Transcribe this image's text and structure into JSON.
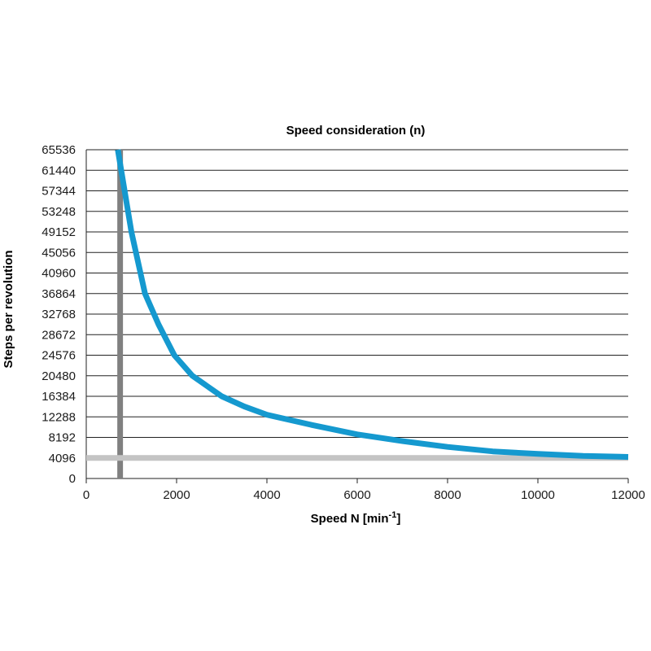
{
  "chart_data": {
    "type": "line",
    "title": "Speed consideration (n)",
    "xlabel": "Speed N [min",
    "xlabel_sup": "-1",
    "xlabel_end": "]",
    "ylabel": "Steps per revolution",
    "xlim": [
      0,
      12000
    ],
    "ylim": [
      0,
      65536
    ],
    "x_ticks": [
      0,
      2000,
      4000,
      6000,
      8000,
      10000,
      12000
    ],
    "y_ticks": [
      0,
      4096,
      8192,
      12288,
      16384,
      20480,
      24576,
      28672,
      32768,
      36864,
      40960,
      45056,
      49152,
      53248,
      57344,
      61440,
      65536
    ],
    "grid": "horizontal",
    "series": [
      {
        "color": "#1599cf",
        "points": [
          [
            700,
            65536
          ],
          [
            1000,
            49152
          ],
          [
            1300,
            36864
          ],
          [
            1600,
            30720
          ],
          [
            1950,
            24576
          ],
          [
            2350,
            20480
          ],
          [
            3000,
            16384
          ],
          [
            3500,
            14336
          ],
          [
            4000,
            12700
          ],
          [
            5000,
            10650
          ],
          [
            6000,
            8800
          ],
          [
            7000,
            7450
          ],
          [
            8000,
            6300
          ],
          [
            9000,
            5400
          ],
          [
            10000,
            4900
          ],
          [
            11000,
            4500
          ],
          [
            12000,
            4300
          ]
        ]
      }
    ],
    "reference_lines": [
      {
        "orientation": "vertical",
        "value": 750,
        "color": "#808080"
      },
      {
        "orientation": "horizontal",
        "value": 4096,
        "color": "#c4c4c4"
      }
    ]
  }
}
